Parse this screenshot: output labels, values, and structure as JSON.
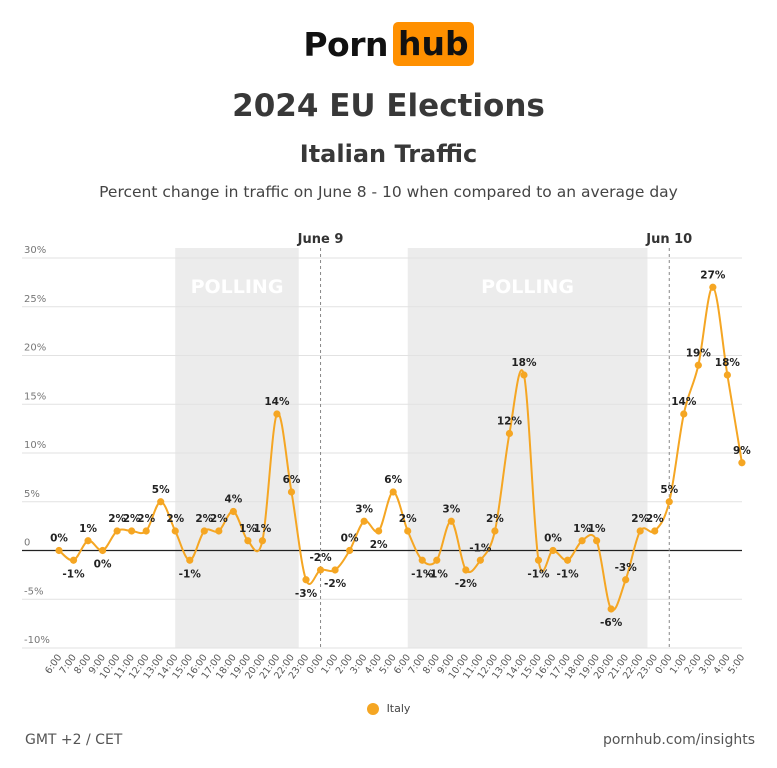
{
  "brand": {
    "logo_left": "Porn",
    "logo_right": "hub",
    "accent": "#ff9000"
  },
  "header": {
    "title": "2024 EU Elections",
    "subtitle": "Italian Traffic",
    "description": "Percent change in traffic on June 8 - 10 when compared to an average day"
  },
  "footer": {
    "timezone": "GMT +2 / CET",
    "source": "pornhub.com/insights"
  },
  "chart_data": {
    "type": "line",
    "x": [
      "6:00",
      "7:00",
      "8:00",
      "9:00",
      "10:00",
      "11:00",
      "12:00",
      "13:00",
      "14:00",
      "15:00",
      "16:00",
      "17:00",
      "18:00",
      "19:00",
      "20:00",
      "21:00",
      "22:00",
      "23:00",
      "0:00",
      "1:00",
      "2:00",
      "3:00",
      "4:00",
      "5:00",
      "6:00",
      "7:00",
      "8:00",
      "9:00",
      "10:00",
      "11:00",
      "12:00",
      "13:00",
      "14:00",
      "15:00",
      "16:00",
      "17:00",
      "18:00",
      "19:00",
      "20:00",
      "21:00",
      "22:00",
      "23:00",
      "0:00",
      "1:00",
      "2:00",
      "3:00",
      "4:00",
      "5:00"
    ],
    "series": [
      {
        "name": "Italy",
        "color": "#f5a623",
        "values": [
          0,
          -1,
          1,
          0,
          2,
          2,
          2,
          5,
          2,
          -1,
          2,
          2,
          4,
          1,
          1,
          14,
          6,
          -3,
          -2,
          -2,
          0,
          3,
          2,
          6,
          2,
          -1,
          -1,
          3,
          -2,
          -1,
          2,
          12,
          18,
          -1,
          0,
          -1,
          1,
          1,
          -6,
          -3,
          2,
          2,
          5,
          14,
          19,
          27,
          18,
          9
        ],
        "labels": [
          "0%",
          "-1%",
          "1%",
          "0%",
          "2%",
          "2%",
          "2%",
          "5%",
          "2%",
          "-1%",
          "2%",
          "2%",
          "4%",
          "1%",
          "1%",
          "14%",
          "6%",
          "-3%",
          "-2%",
          "-2%",
          "0%",
          "3%",
          "2%",
          "6%",
          "2%",
          "-1%",
          "-1%",
          "3%",
          "-2%",
          "-1%",
          "2%",
          "12%",
          "18%",
          "-1%",
          "0%",
          "-1%",
          "1%",
          "1%",
          "-6%",
          "-3%",
          "2%",
          "2%",
          "5%",
          "14%",
          "19%",
          "27%",
          "18%",
          "9%"
        ]
      }
    ],
    "ylim": [
      -10,
      30
    ],
    "yticks": [
      30,
      25,
      20,
      15,
      10,
      5,
      0,
      -5,
      -10
    ],
    "ytick_labels": [
      "30%",
      "25%",
      "20%",
      "15%",
      "10%",
      "5%",
      "0",
      "-5%",
      "-10%"
    ],
    "grid": true,
    "legend_position": "bottom-center",
    "shaded_regions": [
      {
        "label": "POLLING",
        "start": "14:00",
        "end": "22:30"
      },
      {
        "label": "POLLING",
        "start": "6:00",
        "end": "22:30"
      }
    ],
    "vertical_markers": [
      {
        "label": "June 9",
        "at": "0:00"
      },
      {
        "label": "Jun 10",
        "at": "0:00"
      }
    ]
  }
}
